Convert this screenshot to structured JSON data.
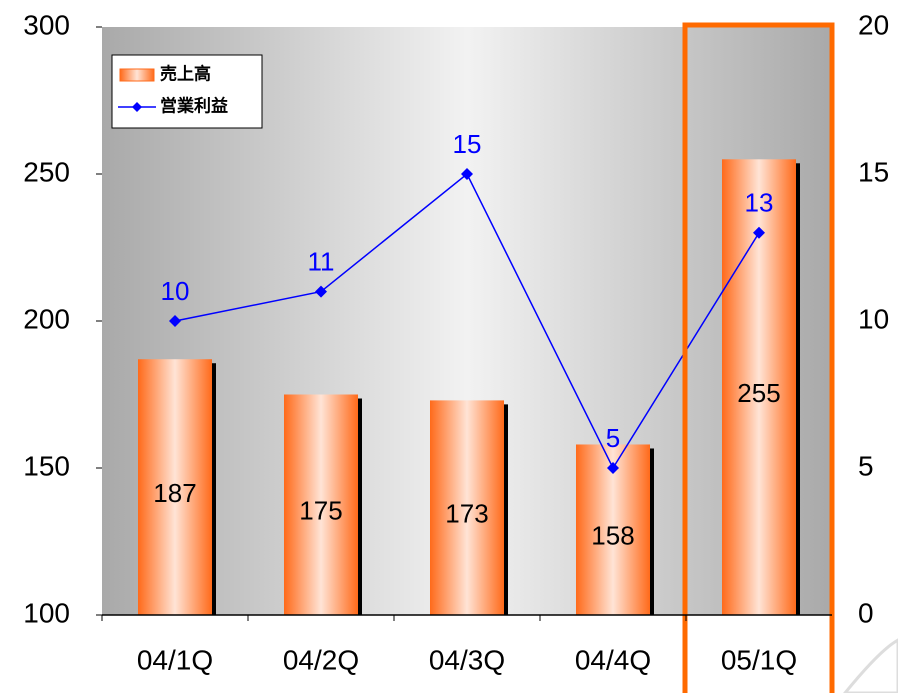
{
  "chart_data": {
    "type": "bar",
    "categories": [
      "04/1Q",
      "04/2Q",
      "04/3Q",
      "04/4Q",
      "05/1Q"
    ],
    "series": [
      {
        "name": "売上高",
        "type": "bar",
        "color": "#ff6a1a",
        "values": [
          187,
          175,
          173,
          158,
          255
        ]
      },
      {
        "name": "営業利益",
        "type": "line",
        "axis": "y2",
        "color": "#0000ff",
        "values": [
          10,
          11,
          15,
          5,
          13
        ]
      }
    ],
    "ylim": [
      100,
      300
    ],
    "yticks": [
      100,
      150,
      200,
      250,
      300
    ],
    "y2lim": [
      0,
      20
    ],
    "y2ticks": [
      0,
      5,
      10,
      15,
      20
    ],
    "legend": "upper left"
  }
}
